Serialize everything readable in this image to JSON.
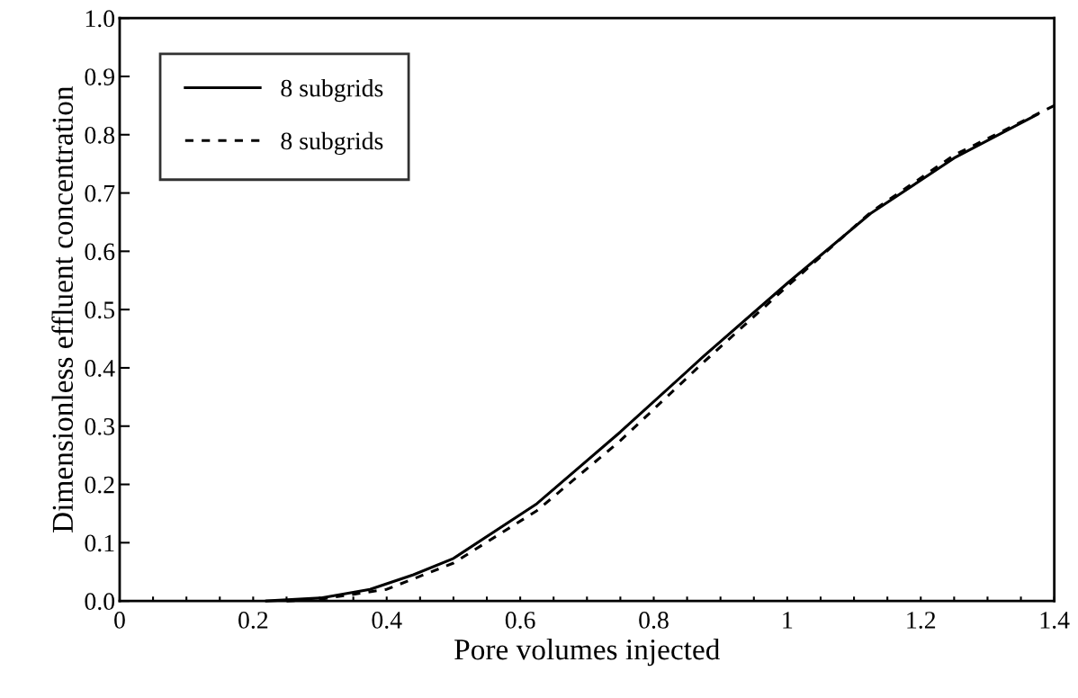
{
  "chart_data": {
    "type": "line",
    "xlabel": "Pore volumes injected",
    "ylabel": "Dimensionless effluent concentration",
    "xlim": [
      0,
      1.4
    ],
    "ylim": [
      0,
      1.0
    ],
    "xticks": [
      0,
      {
        "value": 0.05,
        "label": null
      },
      {
        "value": 0.1,
        "label": null
      },
      {
        "value": 0.15,
        "label": null
      },
      0.2,
      {
        "value": 0.25,
        "label": null
      },
      {
        "value": 0.3,
        "label": null
      },
      {
        "value": 0.35,
        "label": null
      },
      0.4,
      {
        "value": 0.45,
        "label": null
      },
      {
        "value": 0.5,
        "label": null
      },
      {
        "value": 0.55,
        "label": null
      },
      0.6,
      {
        "value": 0.65,
        "label": null
      },
      {
        "value": 0.7,
        "label": null
      },
      {
        "value": 0.75,
        "label": null
      },
      0.8,
      {
        "value": 0.85,
        "label": null
      },
      {
        "value": 0.9,
        "label": null
      },
      {
        "value": 0.95,
        "label": null
      },
      1,
      {
        "value": 1.05,
        "label": null
      },
      {
        "value": 1.1,
        "label": null
      },
      {
        "value": 1.15,
        "label": null
      },
      1.2,
      {
        "value": 1.25,
        "label": null
      },
      {
        "value": 1.3,
        "label": null
      },
      {
        "value": 1.35,
        "label": null
      },
      1.4
    ],
    "yticks": [
      {
        "value": 0,
        "label": "0.0"
      },
      0.1,
      0.2,
      0.3,
      0.4,
      0.5,
      0.6,
      0.7,
      0.8,
      0.9,
      {
        "value": 1.0,
        "label": "1.0"
      }
    ],
    "grid": false,
    "legend": "top left",
    "marker": "none",
    "series": [
      {
        "name": "8 subgrids",
        "color": "#000000",
        "line_style": "solid",
        "x": [
          0.22,
          0.3,
          0.375,
          0.44,
          0.5,
          0.625,
          0.75,
          0.875,
          1.0,
          1.125,
          1.25,
          1.375
        ],
        "values": [
          0,
          0.005,
          0.02,
          0.045,
          0.073,
          0.167,
          0.29,
          0.42,
          0.545,
          0.665,
          0.76,
          0.835
        ]
      },
      {
        "name": "8 subgrids",
        "color": "#000000",
        "line_style": "dotted",
        "x": [
          0.25,
          0.3,
          0.4,
          0.5,
          0.625,
          0.75,
          0.875,
          1.0,
          1.125,
          1.25,
          1.4
        ],
        "values": [
          0,
          0.003,
          0.02,
          0.065,
          0.155,
          0.275,
          0.41,
          0.54,
          0.667,
          0.765,
          0.85
        ]
      }
    ]
  }
}
